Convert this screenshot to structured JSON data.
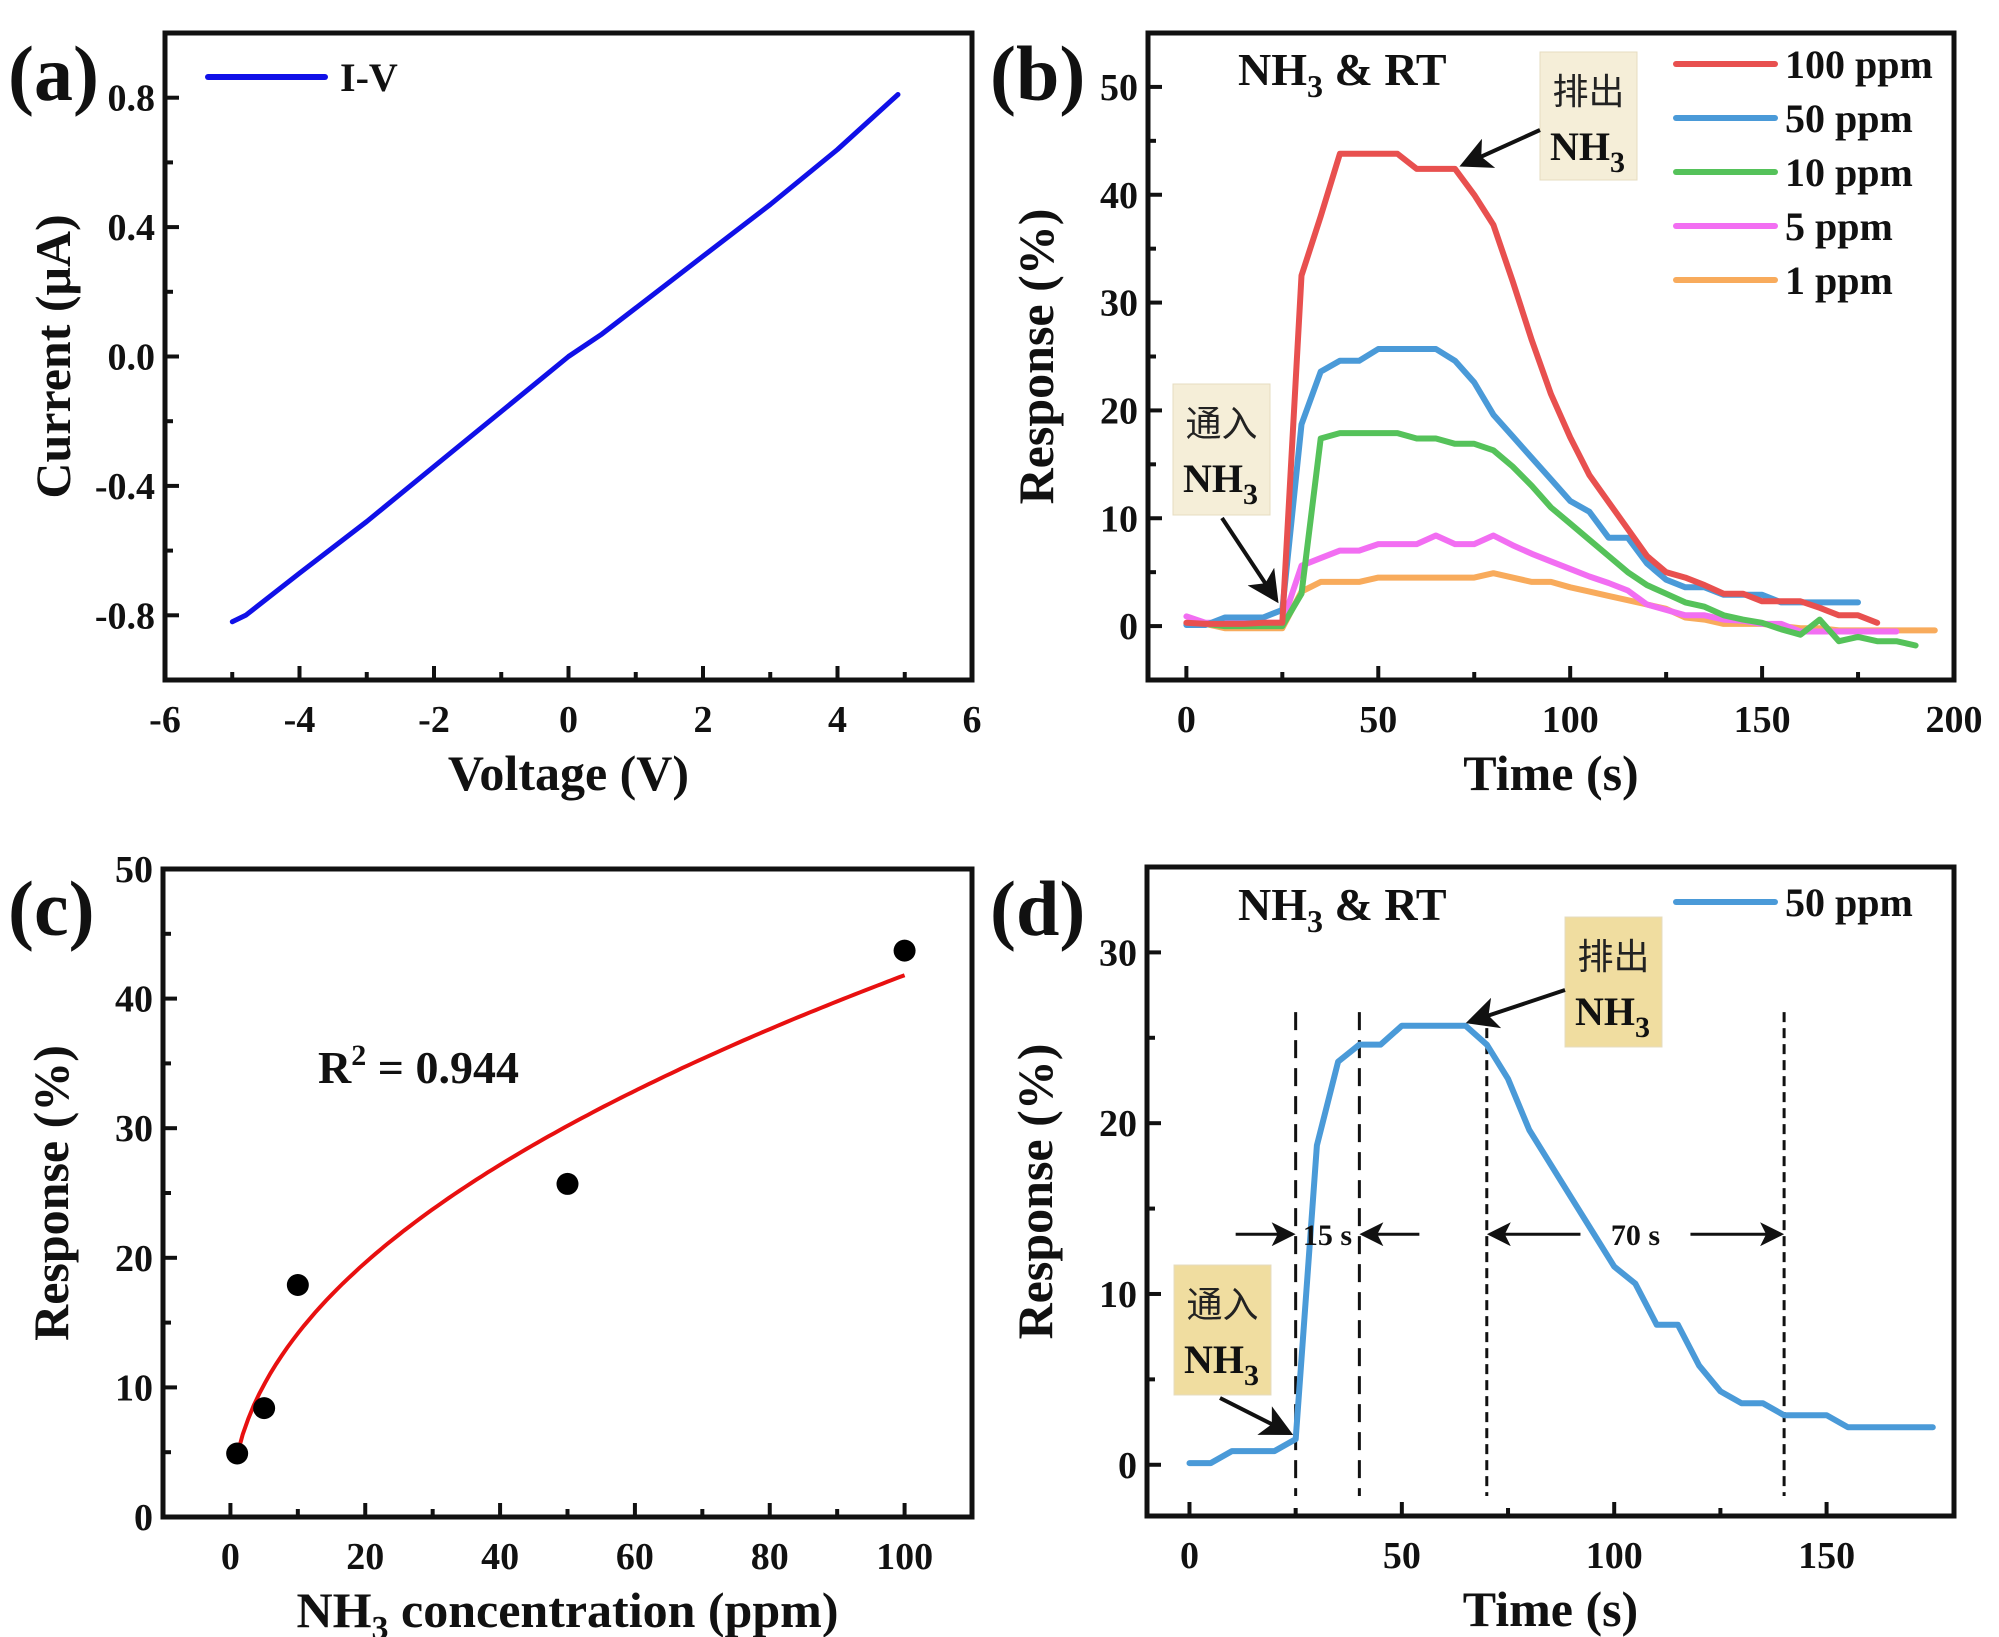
{
  "chart_data": [
    {
      "panel": "(a)",
      "type": "line",
      "title": "",
      "xlabel": "Voltage (V)",
      "ylabel": "Current (μA)",
      "xlim": [
        -6,
        6
      ],
      "ylim": [
        -1,
        1
      ],
      "xticks": [
        -6,
        -4,
        -2,
        0,
        2,
        4,
        6
      ],
      "xtick_labels": [
        "-6",
        "-4",
        "-2",
        "0",
        "2",
        "4",
        "6"
      ],
      "yticks": [
        -0.8,
        -0.4,
        0.0,
        0.4,
        0.8
      ],
      "ytick_labels": [
        "-0.8",
        "-0.4",
        "0.0",
        "0.4",
        "0.8"
      ],
      "grid": false,
      "legend_position": "top-left",
      "series": [
        {
          "name": "I-V",
          "color": "#1010e8",
          "x": [
            -5,
            -4.8,
            -4,
            -3,
            -2,
            -1,
            0,
            0.5,
            1,
            2,
            3,
            4,
            4.9
          ],
          "y": [
            -0.82,
            -0.8,
            -0.67,
            -0.51,
            -0.34,
            -0.17,
            0,
            0.07,
            0.15,
            0.31,
            0.47,
            0.64,
            0.81
          ]
        }
      ]
    },
    {
      "panel": "(b)",
      "type": "line",
      "title": "NH3 & RT",
      "xlabel": "Time (s)",
      "ylabel": "Response (%)",
      "xlim": [
        -10,
        200
      ],
      "ylim": [
        -5,
        55
      ],
      "xticks": [
        0,
        50,
        100,
        150,
        200
      ],
      "xtick_labels": [
        "0",
        "50",
        "100",
        "150",
        "200"
      ],
      "yticks": [
        0,
        10,
        20,
        30,
        40,
        50
      ],
      "ytick_labels": [
        "0",
        "10",
        "20",
        "30",
        "40",
        "50"
      ],
      "grid": false,
      "legend_position": "top-right",
      "annotations": [
        {
          "line1": "通入",
          "line2": "NH",
          "sub": "3",
          "meaning": "gas in",
          "arrow_to": [
            25,
            1.5
          ]
        },
        {
          "line1": "排出",
          "line2": "NH",
          "sub": "3",
          "meaning": "gas out",
          "arrow_to": [
            70,
            42.4
          ]
        }
      ],
      "series": [
        {
          "name": "100 ppm",
          "color": "#e8504f",
          "x": [
            0,
            5,
            10,
            15,
            20,
            25,
            30,
            35,
            40,
            45,
            50,
            55,
            60,
            65,
            70,
            75,
            80,
            85,
            90,
            95,
            100,
            105,
            110,
            115,
            120,
            125,
            130,
            135,
            140,
            145,
            150,
            155,
            160,
            165,
            170,
            175,
            180
          ],
          "y": [
            0.3,
            0.2,
            0.2,
            0.2,
            0.3,
            0.3,
            32.5,
            38,
            43.8,
            43.8,
            43.8,
            43.8,
            42.4,
            42.4,
            42.4,
            40,
            37.2,
            32,
            26.5,
            21.5,
            17.5,
            14,
            11.5,
            9,
            6.5,
            5,
            4.5,
            3.8,
            3,
            3,
            2.3,
            2.3,
            2.3,
            1.7,
            1,
            1,
            0.3
          ]
        },
        {
          "name": "50 ppm",
          "color": "#4a9ad8",
          "x": [
            0,
            5,
            10,
            15,
            20,
            25,
            30,
            35,
            40,
            45,
            50,
            55,
            60,
            65,
            70,
            75,
            80,
            85,
            90,
            95,
            100,
            105,
            110,
            115,
            120,
            125,
            130,
            135,
            140,
            145,
            150,
            155,
            160,
            165,
            170,
            175
          ],
          "y": [
            0.1,
            0.1,
            0.8,
            0.8,
            0.8,
            1.5,
            18.7,
            23.6,
            24.6,
            24.6,
            25.7,
            25.7,
            25.7,
            25.7,
            24.6,
            22.6,
            19.6,
            17.6,
            15.6,
            13.6,
            11.6,
            10.6,
            8.2,
            8.2,
            5.8,
            4.3,
            3.6,
            3.6,
            2.9,
            2.9,
            2.9,
            2.2,
            2.2,
            2.2,
            2.2,
            2.2
          ]
        },
        {
          "name": "10 ppm",
          "color": "#55c25a",
          "x": [
            0,
            5,
            10,
            15,
            20,
            25,
            30,
            35,
            40,
            45,
            50,
            55,
            60,
            65,
            70,
            75,
            80,
            85,
            90,
            95,
            100,
            105,
            110,
            115,
            120,
            125,
            130,
            135,
            140,
            145,
            150,
            155,
            160,
            165,
            170,
            175,
            180,
            185,
            190
          ],
          "y": [
            0.2,
            0.2,
            0,
            0,
            0,
            0,
            3,
            17.4,
            17.9,
            17.9,
            17.9,
            17.9,
            17.4,
            17.4,
            16.9,
            16.9,
            16.3,
            14.8,
            13,
            11,
            9.5,
            8,
            6.5,
            5,
            3.8,
            3,
            2.2,
            1.8,
            1,
            0.6,
            0.3,
            -0.3,
            -0.8,
            0.6,
            -1.4,
            -1,
            -1.4,
            -1.4,
            -1.8
          ]
        },
        {
          "name": "5 ppm",
          "color": "#f26ef2",
          "x": [
            0,
            5,
            10,
            15,
            20,
            25,
            30,
            35,
            40,
            45,
            50,
            55,
            60,
            65,
            70,
            75,
            80,
            85,
            90,
            95,
            100,
            105,
            110,
            115,
            120,
            125,
            130,
            135,
            140,
            145,
            150,
            155,
            160,
            165,
            170,
            175,
            180,
            185
          ],
          "y": [
            0.9,
            0.3,
            0.3,
            0.3,
            0.3,
            0.3,
            5.6,
            6.3,
            7,
            7,
            7.6,
            7.6,
            7.6,
            8.4,
            7.6,
            7.6,
            8.4,
            7.5,
            6.7,
            6,
            5.3,
            4.6,
            4,
            3.3,
            2,
            1.5,
            1,
            1,
            0.6,
            0.5,
            0.2,
            0.2,
            -0.5,
            -0.5,
            -0.5,
            -0.5,
            -0.5,
            -0.5
          ]
        },
        {
          "name": "1 ppm",
          "color": "#f8ab5c",
          "x": [
            0,
            5,
            10,
            15,
            20,
            25,
            30,
            35,
            40,
            45,
            50,
            55,
            60,
            65,
            70,
            75,
            80,
            85,
            90,
            95,
            100,
            105,
            110,
            115,
            120,
            125,
            130,
            135,
            140,
            145,
            150,
            155,
            160,
            165,
            170,
            175,
            180,
            185,
            190,
            195
          ],
          "y": [
            0.2,
            0.2,
            -0.2,
            -0.2,
            -0.2,
            -0.2,
            3.2,
            4.1,
            4.1,
            4.1,
            4.5,
            4.5,
            4.5,
            4.5,
            4.5,
            4.5,
            4.9,
            4.5,
            4.1,
            4.1,
            3.6,
            3.2,
            2.8,
            2.4,
            2,
            1.6,
            0.8,
            0.6,
            0.2,
            0.2,
            0.2,
            0,
            -0.2,
            -0.2,
            -0.4,
            -0.4,
            -0.4,
            -0.4,
            -0.4,
            -0.4
          ]
        }
      ]
    },
    {
      "panel": "(c)",
      "type": "scatter",
      "title": "",
      "xlabel": "NH3 concentration (ppm)",
      "ylabel": "Response (%)",
      "xlim": [
        -10,
        110
      ],
      "ylim": [
        0,
        50
      ],
      "xticks": [
        0,
        20,
        40,
        60,
        80,
        100
      ],
      "xtick_labels": [
        "0",
        "20",
        "40",
        "60",
        "80",
        "100"
      ],
      "yticks": [
        0,
        10,
        20,
        30,
        40,
        50
      ],
      "ytick_labels": [
        "0",
        "10",
        "20",
        "30",
        "40",
        "50"
      ],
      "grid": false,
      "annotation": "R² = 0.944",
      "points": {
        "color": "#000000",
        "x": [
          1,
          5,
          10,
          50,
          100
        ],
        "y": [
          4.9,
          8.4,
          17.9,
          25.7,
          43.7
        ]
      },
      "fit": {
        "type": "power",
        "color": "#e81010",
        "a": 4.8,
        "b": 0.47,
        "x_range": [
          1,
          100
        ],
        "r_squared": 0.944
      }
    },
    {
      "panel": "(d)",
      "type": "line",
      "title": "NH3 & RT",
      "xlabel": "Time (s)",
      "ylabel": "Response (%)",
      "xlim": [
        -10,
        180
      ],
      "ylim": [
        -3,
        35
      ],
      "xticks": [
        0,
        50,
        100,
        150
      ],
      "xtick_labels": [
        "0",
        "50",
        "100",
        "150"
      ],
      "yticks": [
        0,
        10,
        20,
        30
      ],
      "ytick_labels": [
        "0",
        "10",
        "20",
        "30"
      ],
      "grid": false,
      "legend_position": "top-right",
      "annotations": [
        {
          "line1": "通入",
          "line2": "NH",
          "sub": "3",
          "meaning": "gas in",
          "arrow_to": [
            25,
            1.5
          ]
        },
        {
          "line1": "排出",
          "line2": "NH",
          "sub": "3",
          "meaning": "gas out",
          "arrow_to": [
            65,
            25.7
          ]
        }
      ],
      "dashed_lines_x": [
        25,
        40,
        70,
        140
      ],
      "intervals": [
        {
          "label": "15 s",
          "from": 25,
          "to": 40,
          "y": 13.5
        },
        {
          "label": "70 s",
          "from": 70,
          "to": 140,
          "y": 13.5
        }
      ],
      "series": [
        {
          "name": "50 ppm",
          "color": "#4a9ad8",
          "x": [
            0,
            5,
            10,
            15,
            20,
            25,
            30,
            35,
            40,
            45,
            50,
            55,
            60,
            65,
            70,
            75,
            80,
            85,
            90,
            95,
            100,
            105,
            110,
            115,
            120,
            125,
            130,
            135,
            140,
            145,
            150,
            155,
            160,
            165,
            170,
            175
          ],
          "y": [
            0.1,
            0.1,
            0.8,
            0.8,
            0.8,
            1.5,
            18.7,
            23.6,
            24.6,
            24.6,
            25.7,
            25.7,
            25.7,
            25.7,
            24.6,
            22.6,
            19.6,
            17.6,
            15.6,
            13.6,
            11.6,
            10.6,
            8.2,
            8.2,
            5.8,
            4.3,
            3.6,
            3.6,
            2.9,
            2.9,
            2.9,
            2.2,
            2.2,
            2.2,
            2.2,
            2.2
          ]
        }
      ]
    }
  ]
}
